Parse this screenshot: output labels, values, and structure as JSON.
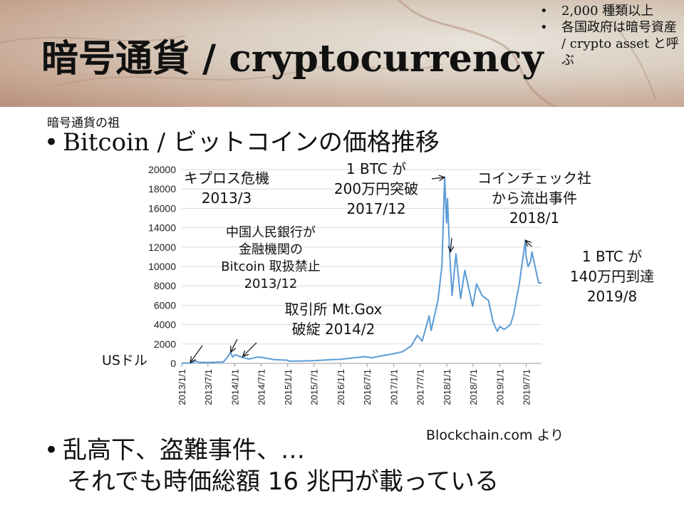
{
  "slide": {
    "title": "暗号通貨 / cryptocurrency",
    "side_notes": [
      "2,000 種類以上",
      "各国政府は暗号資産 / crypto asset と呼ぶ"
    ],
    "small_note": "暗号通貨の祖",
    "bullet1": "Bitcoin / ビットコインの価格推移",
    "bullet2_line1": "乱高下、盗難事件、…",
    "bullet2_line2": "それでも時価総額 16 兆円が載っている",
    "source": "Blockchain.com より",
    "colors": {
      "line": "#5b9bd5",
      "grid": "#d9d9d9"
    }
  },
  "chart_data": {
    "type": "line",
    "ylabel": "USドル",
    "ylim": [
      0,
      20000
    ],
    "yticks": [
      0,
      2000,
      4000,
      6000,
      8000,
      10000,
      12000,
      14000,
      16000,
      18000,
      20000
    ],
    "xticks": [
      "2013/1/1",
      "2013/7/1",
      "2014/1/1",
      "2014/7/1",
      "2015/1/1",
      "2015/7/1",
      "2016/1/1",
      "2016/7/1",
      "2017/1/1",
      "2017/7/1",
      "2018/1/1",
      "2018/7/1",
      "2019/1/1",
      "2019/7/1"
    ],
    "grid": true,
    "series": [
      {
        "x": [
          "2013/1/1",
          "2013/3/1",
          "2013/4/10",
          "2013/5/1",
          "2013/7/1",
          "2013/9/1",
          "2013/10/15",
          "2013/11/15",
          "2013/12/4",
          "2013/12/18",
          "2014/1/5",
          "2014/2/25",
          "2014/4/10",
          "2014/6/1",
          "2014/7/1",
          "2014/10/1",
          "2015/1/1",
          "2015/1/15",
          "2015/7/1",
          "2015/11/5",
          "2016/1/1",
          "2016/6/17",
          "2016/8/1",
          "2017/1/1",
          "2017/3/1",
          "2017/5/1",
          "2017/6/12",
          "2017/7/15",
          "2017/9/1",
          "2017/9/15",
          "2017/11/1",
          "2017/11/28",
          "2017/12/17",
          "2017/12/30",
          "2018/1/6",
          "2018/1/20",
          "2018/2/6",
          "2018/3/5",
          "2018/4/6",
          "2018/5/5",
          "2018/6/28",
          "2018/7/25",
          "2018/9/1",
          "2018/10/15",
          "2018/11/15",
          "2018/12/15",
          "2019/1/1",
          "2019/2/1",
          "2019/3/15",
          "2019/4/5",
          "2019/5/15",
          "2019/6/26",
          "2019/7/1",
          "2019/7/15",
          "2019/8/1",
          "2019/8/10",
          "2019/9/1",
          "2019/9/25",
          "2019/10/15"
        ],
        "y": [
          13,
          35,
          230,
          110,
          90,
          135,
          150,
          700,
          1150,
          650,
          900,
          600,
          450,
          640,
          630,
          380,
          320,
          220,
          280,
          400,
          430,
          700,
          580,
          1000,
          1200,
          1800,
          2900,
          2300,
          4900,
          3400,
          6500,
          10000,
          19200,
          14500,
          17000,
          11500,
          7000,
          11300,
          6700,
          9600,
          5900,
          8200,
          7000,
          6500,
          4300,
          3300,
          3800,
          3500,
          4000,
          5000,
          8200,
          12700,
          11000,
          10000,
          10500,
          11500,
          10000,
          8300,
          8300
        ]
      }
    ],
    "annotations": [
      {
        "text": [
          "キプロス危機",
          "2013/3"
        ],
        "date": "2013/3/1",
        "value": 80
      },
      {
        "text": [
          "中国人民銀行が",
          "金融機関の",
          "Bitcoin 取扱禁止",
          "2013/12"
        ],
        "date": "2013/12/4",
        "value": 1150
      },
      {
        "text": [
          "取引所 Mt.Gox",
          "破綻 2014/2"
        ],
        "date": "2014/2/25",
        "value": 700
      },
      {
        "text": [
          "1 BTC が",
          "200万円突破",
          "2017/12"
        ],
        "date": "2017/12/17",
        "value": 19200
      },
      {
        "text": [
          "コインチェック社",
          "から流出事件",
          "2018/1"
        ],
        "date": "2018/1/26",
        "value": 11500
      },
      {
        "text": [
          "1 BTC が",
          "140万円到達",
          "2019/8"
        ],
        "date": "2019/6/26",
        "value": 12700
      }
    ]
  }
}
